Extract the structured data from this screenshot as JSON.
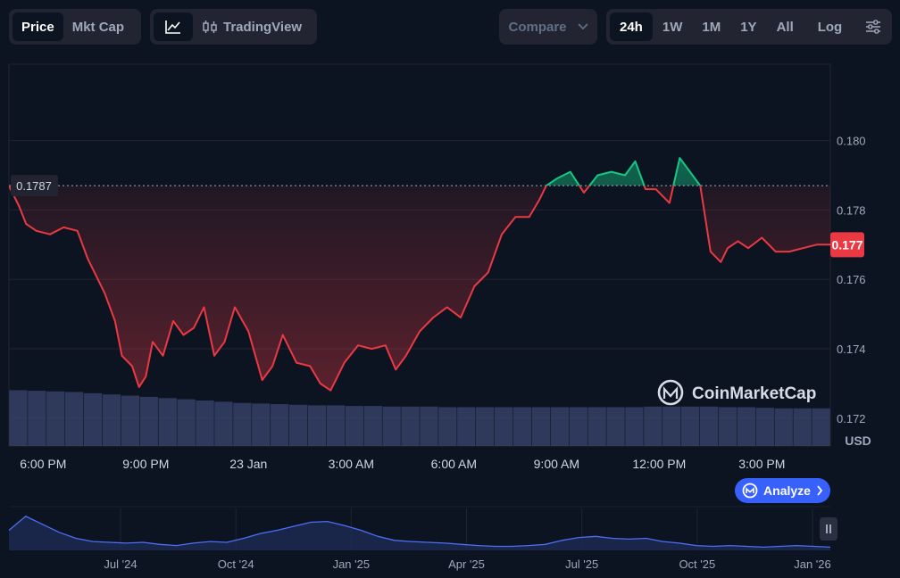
{
  "toolbar": {
    "tab_price": "Price",
    "tab_mktcap": "Mkt Cap",
    "tradingview": "TradingView",
    "compare": "Compare",
    "ranges": [
      "24h",
      "1W",
      "1M",
      "1Y",
      "All"
    ],
    "log": "Log"
  },
  "watermark": "CoinMarketCap",
  "analyze_label": "Analyze",
  "colors": {
    "up": "#16c784",
    "down": "#ea3943",
    "bg": "#0d1421",
    "accent": "#3861fb",
    "nav_line": "#4d6ef5"
  },
  "chart_data": [
    {
      "type": "area",
      "title": "",
      "currency": "USD",
      "open_price": 0.1787,
      "open_price_label": "0.1787",
      "current_price": 0.177,
      "current_price_label": "0.177",
      "ylim": [
        0.1712,
        0.1822
      ],
      "yticks": [
        0.172,
        0.174,
        0.176,
        0.178,
        0.18
      ],
      "ytick_labels": [
        "0.172",
        "0.174",
        "0.176",
        "0.178",
        "0.180"
      ],
      "xticks": [
        1,
        4,
        7,
        10,
        13,
        16,
        19,
        22
      ],
      "xtick_labels": [
        "6:00 PM",
        "9:00 PM",
        "23 Jan",
        "3:00 AM",
        "6:00 AM",
        "9:00 AM",
        "12:00 PM",
        "3:00 PM"
      ],
      "xlim": [
        0,
        24
      ],
      "grid": true,
      "x_unit": "hours since 5:00 PM, 22 Jan",
      "x": [
        0,
        0.3,
        0.5,
        0.8,
        1.2,
        1.6,
        2.0,
        2.3,
        2.8,
        3.1,
        3.3,
        3.6,
        3.8,
        4.0,
        4.2,
        4.5,
        4.8,
        5.1,
        5.4,
        5.7,
        6.0,
        6.3,
        6.6,
        7.0,
        7.4,
        7.7,
        8.0,
        8.4,
        8.8,
        9.1,
        9.4,
        9.8,
        10.2,
        10.6,
        11.0,
        11.3,
        11.6,
        12.0,
        12.4,
        12.8,
        13.2,
        13.6,
        14.0,
        14.4,
        14.8,
        15.2,
        15.5,
        15.7,
        16.0,
        16.4,
        16.8,
        17.2,
        17.6,
        18.0,
        18.3,
        18.6,
        18.9,
        19.3,
        19.6,
        19.9,
        20.2,
        20.5,
        20.8,
        21.0,
        21.3,
        21.6,
        22.0,
        22.4,
        22.8,
        23.2,
        23.6,
        24.0
      ],
      "values": [
        0.1787,
        0.1781,
        0.1776,
        0.1774,
        0.1773,
        0.1775,
        0.1774,
        0.1766,
        0.1756,
        0.1748,
        0.1738,
        0.1735,
        0.1729,
        0.1732,
        0.1742,
        0.1738,
        0.1748,
        0.1744,
        0.1746,
        0.1752,
        0.1738,
        0.1742,
        0.1752,
        0.1745,
        0.1731,
        0.1735,
        0.1744,
        0.1736,
        0.1735,
        0.173,
        0.1728,
        0.1736,
        0.1741,
        0.174,
        0.1741,
        0.1734,
        0.1738,
        0.1745,
        0.1749,
        0.1752,
        0.1749,
        0.1758,
        0.1762,
        0.1773,
        0.1778,
        0.1778,
        0.1783,
        0.1787,
        0.1789,
        0.1791,
        0.1785,
        0.179,
        0.1791,
        0.179,
        0.1794,
        0.1786,
        0.1786,
        0.1782,
        0.1795,
        0.1791,
        0.1787,
        0.1768,
        0.1765,
        0.1769,
        0.1771,
        0.1769,
        0.1772,
        0.1768,
        0.1768,
        0.1769,
        0.177,
        0.177
      ],
      "volume_relative": [
        0.92,
        0.91,
        0.9,
        0.89,
        0.87,
        0.85,
        0.83,
        0.81,
        0.79,
        0.77,
        0.75,
        0.73,
        0.71,
        0.7,
        0.69,
        0.68,
        0.67,
        0.67,
        0.66,
        0.66,
        0.65,
        0.65,
        0.65,
        0.64,
        0.64,
        0.64,
        0.64,
        0.64,
        0.64,
        0.64,
        0.64,
        0.64,
        0.64,
        0.64,
        0.65,
        0.65,
        0.65,
        0.65,
        0.64,
        0.64,
        0.63,
        0.62,
        0.62,
        0.62
      ]
    },
    {
      "type": "line",
      "title": "",
      "xtick_labels": [
        "Jul '24",
        "Oct '24",
        "Jan '25",
        "Apr '25",
        "Jul '25",
        "Oct '25",
        "Jan '26"
      ],
      "values": [
        0.5,
        0.85,
        0.65,
        0.45,
        0.3,
        0.22,
        0.2,
        0.18,
        0.2,
        0.15,
        0.12,
        0.18,
        0.22,
        0.2,
        0.3,
        0.42,
        0.5,
        0.6,
        0.7,
        0.72,
        0.62,
        0.5,
        0.35,
        0.25,
        0.22,
        0.2,
        0.18,
        0.15,
        0.12,
        0.1,
        0.1,
        0.12,
        0.15,
        0.25,
        0.32,
        0.35,
        0.3,
        0.28,
        0.3,
        0.22,
        0.18,
        0.12,
        0.1,
        0.12,
        0.1,
        0.08,
        0.1,
        0.12,
        0.1,
        0.08
      ]
    }
  ]
}
